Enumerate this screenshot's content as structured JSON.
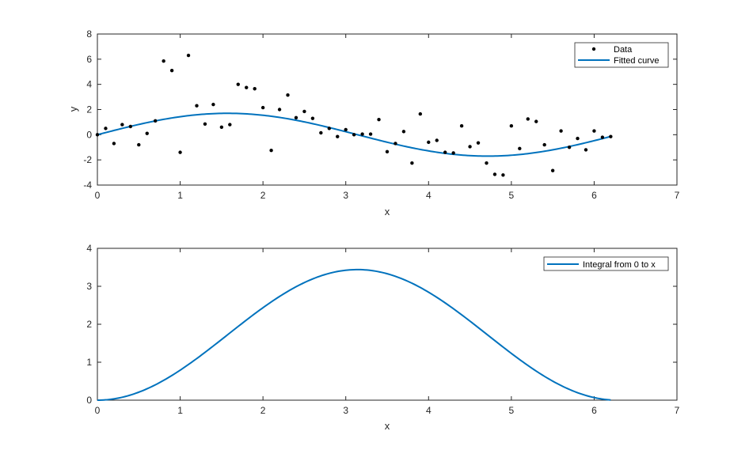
{
  "colors": {
    "line": "#0072bd",
    "points": "#000000",
    "axis": "#262626",
    "background": "#ffffff"
  },
  "chart_data": [
    {
      "type": "scatter",
      "xlabel": "x",
      "ylabel": "y",
      "xlim": [
        0,
        7
      ],
      "ylim": [
        -4,
        8
      ],
      "xticks": [
        "0",
        "1",
        "2",
        "3",
        "4",
        "5",
        "6",
        "7"
      ],
      "yticks": [
        "-4",
        "-2",
        "0",
        "2",
        "4",
        "6",
        "8"
      ],
      "legend_position": "top-right",
      "grid": false,
      "series": [
        {
          "name": "Data",
          "type": "scatter",
          "x": [
            0,
            0.1,
            0.2,
            0.3,
            0.4,
            0.5,
            0.6,
            0.7,
            0.8,
            0.9,
            1.0,
            1.1,
            1.2,
            1.3,
            1.4,
            1.5,
            1.6,
            1.7,
            1.8,
            1.9,
            2.0,
            2.1,
            2.2,
            2.3,
            2.4,
            2.5,
            2.6,
            2.7,
            2.8,
            2.9,
            3.0,
            3.1,
            3.2,
            3.3,
            3.4,
            3.5,
            3.6,
            3.7,
            3.8,
            3.9,
            4.0,
            4.1,
            4.2,
            4.3,
            4.4,
            4.5,
            4.6,
            4.7,
            4.8,
            4.9,
            5.0,
            5.1,
            5.2,
            5.3,
            5.4,
            5.5,
            5.6,
            5.7,
            5.8,
            5.9,
            6.0,
            6.1,
            6.2
          ],
          "y": [
            0.0,
            0.5,
            -0.7,
            0.8,
            0.65,
            -0.8,
            0.1,
            1.1,
            5.85,
            5.1,
            -1.4,
            6.3,
            2.3,
            0.85,
            2.4,
            0.6,
            0.8,
            4.0,
            3.75,
            3.65,
            2.15,
            -1.25,
            2.0,
            3.15,
            1.35,
            1.85,
            1.3,
            0.15,
            0.5,
            -0.15,
            0.4,
            0.0,
            0.05,
            0.05,
            1.2,
            -1.35,
            -0.7,
            0.25,
            -2.25,
            1.65,
            -0.6,
            -0.45,
            -1.4,
            -1.45,
            0.7,
            -0.95,
            -0.65,
            -2.25,
            -3.15,
            -3.2,
            0.7,
            -1.1,
            1.25,
            1.05,
            -0.8,
            -2.85,
            0.3,
            -1.0,
            -0.3,
            -1.2,
            0.3,
            -0.2,
            -0.15
          ]
        },
        {
          "name": "Fitted curve",
          "type": "line",
          "function": "1.7*sin(x)",
          "x_range": [
            0,
            6.2
          ]
        }
      ]
    },
    {
      "type": "line",
      "xlabel": "x",
      "ylabel": "",
      "xlim": [
        0,
        7
      ],
      "ylim": [
        0,
        4
      ],
      "xticks": [
        "0",
        "1",
        "2",
        "3",
        "4",
        "5",
        "6",
        "7"
      ],
      "yticks": [
        "0",
        "1",
        "2",
        "3",
        "4"
      ],
      "legend_position": "top-right",
      "grid": false,
      "series": [
        {
          "name": "Integral from 0 to x",
          "type": "line",
          "function": "1.72*(1-cos(x))",
          "x_range": [
            0,
            6.2
          ]
        }
      ]
    }
  ]
}
